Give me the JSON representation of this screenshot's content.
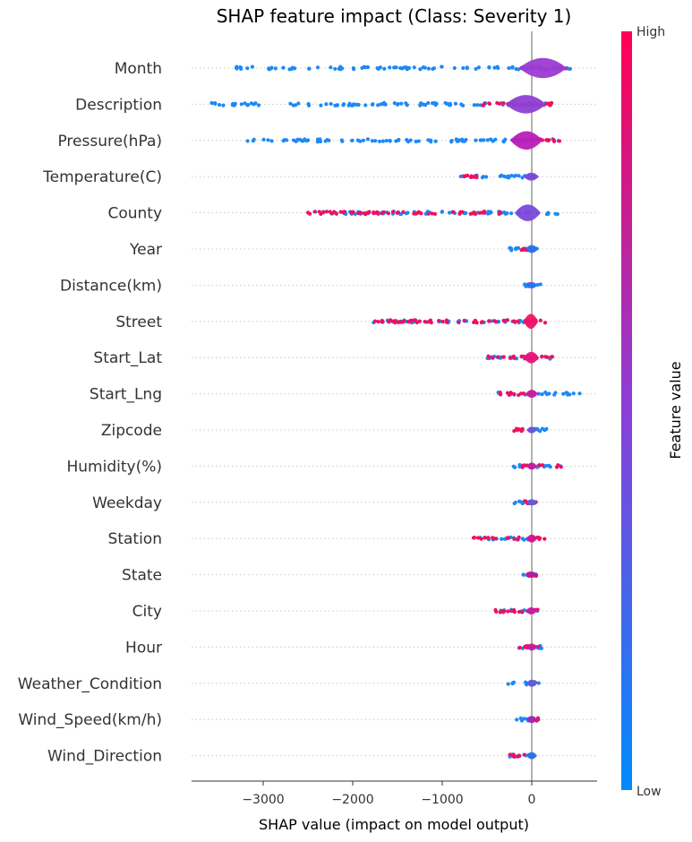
{
  "chart_data": {
    "type": "violin",
    "title": "SHAP feature impact (Class: Severity 1)",
    "xlabel": "SHAP value (impact on model output)",
    "xlim": [
      -3800,
      730
    ],
    "xticks": [
      -3000,
      -2000,
      -1000,
      0
    ],
    "xtick_labels": [
      "−3000",
      "−2000",
      "−1000",
      "0"
    ],
    "colorbar": {
      "label": "Feature value",
      "high_label": "High",
      "low_label": "Low",
      "high_color": "#ff0052",
      "low_color": "#008bfb"
    },
    "features": [
      {
        "name": "Month",
        "dot_range": [
          -3300,
          430
        ],
        "high_range": [
          -200,
          430
        ],
        "body": [
          -100,
          350
        ],
        "body_half": 1.0,
        "body_color": "#9b3bd4"
      },
      {
        "name": "Description",
        "dot_range": [
          -3600,
          250
        ],
        "high_range": [
          -600,
          250
        ],
        "body": [
          -250,
          120
        ],
        "body_half": 0.9,
        "body_color": "#8e3fd2"
      },
      {
        "name": "Pressure(hPa)",
        "dot_range": [
          -3300,
          330
        ],
        "high_range": [
          -200,
          330
        ],
        "body": [
          -200,
          80
        ],
        "body_half": 0.9,
        "body_color": "#b81fb8"
      },
      {
        "name": "Temperature(C)",
        "dot_range": [
          -820,
          150
        ],
        "high_range": [
          -820,
          -580
        ],
        "body": [
          -50,
          40
        ],
        "body_half": 0.3,
        "body_color": "#7a4ad8"
      },
      {
        "name": "County",
        "dot_range": [
          -2500,
          300
        ],
        "high_range": [
          -2500,
          -350
        ],
        "body": [
          -150,
          60
        ],
        "body_half": 0.8,
        "body_color": "#7a4ad8"
      },
      {
        "name": "Year",
        "dot_range": [
          -250,
          80
        ],
        "high_range": [
          -150,
          20
        ],
        "body": [
          -30,
          30
        ],
        "body_half": 0.3,
        "body_color": "#2875e8"
      },
      {
        "name": "Distance(km)",
        "dot_range": [
          -100,
          100
        ],
        "high_range": [
          -30,
          30
        ],
        "body": [
          -20,
          20
        ],
        "body_half": 0.2,
        "body_color": "#1e7cee"
      },
      {
        "name": "Street",
        "dot_range": [
          -1800,
          150
        ],
        "high_range": [
          -1800,
          150
        ],
        "body": [
          -50,
          30
        ],
        "body_half": 0.7,
        "body_color": "#f01266"
      },
      {
        "name": "Start_Lat",
        "dot_range": [
          -520,
          250
        ],
        "high_range": [
          -520,
          250
        ],
        "body": [
          -50,
          40
        ],
        "body_half": 0.5,
        "body_color": "#e8157a"
      },
      {
        "name": "Start_Lng",
        "dot_range": [
          -400,
          550
        ],
        "high_range": [
          -400,
          40
        ],
        "body": [
          -30,
          30
        ],
        "body_half": 0.3,
        "body_color": "#c81d9c"
      },
      {
        "name": "Zipcode",
        "dot_range": [
          -200,
          170
        ],
        "high_range": [
          -200,
          -100
        ],
        "body": [
          -20,
          20
        ],
        "body_half": 0.2,
        "body_color": "#6a55dc"
      },
      {
        "name": "Humidity(%)",
        "dot_range": [
          -280,
          330
        ],
        "high_range": [
          -150,
          330
        ],
        "body": [
          -20,
          20
        ],
        "body_half": 0.25,
        "body_color": "#c81d9c"
      },
      {
        "name": "Weekday",
        "dot_range": [
          -200,
          50
        ],
        "high_range": [
          -100,
          50
        ],
        "body": [
          -20,
          20
        ],
        "body_half": 0.2,
        "body_color": "#5a60de"
      },
      {
        "name": "Station",
        "dot_range": [
          -650,
          180
        ],
        "high_range": [
          -650,
          180
        ],
        "body": [
          -20,
          20
        ],
        "body_half": 0.3,
        "body_color": "#d41690"
      },
      {
        "name": "State",
        "dot_range": [
          -100,
          50
        ],
        "high_range": [
          -50,
          50
        ],
        "body": [
          -15,
          15
        ],
        "body_half": 0.2,
        "body_color": "#b01ea8"
      },
      {
        "name": "City",
        "dot_range": [
          -420,
          80
        ],
        "high_range": [
          -420,
          80
        ],
        "body": [
          -30,
          20
        ],
        "body_half": 0.25,
        "body_color": "#c81d9c"
      },
      {
        "name": "Hour",
        "dot_range": [
          -150,
          150
        ],
        "high_range": [
          -150,
          150
        ],
        "body": [
          -20,
          20
        ],
        "body_half": 0.25,
        "body_color": "#c81d9c"
      },
      {
        "name": "Weather_Condition",
        "dot_range": [
          -300,
          80
        ],
        "high_range": [
          -20,
          40
        ],
        "body": [
          -20,
          20
        ],
        "body_half": 0.25,
        "body_color": "#5a60de"
      },
      {
        "name": "Wind_Speed(km/h)",
        "dot_range": [
          -200,
          80
        ],
        "high_range": [
          -50,
          80
        ],
        "body": [
          -20,
          20
        ],
        "body_half": 0.25,
        "body_color": "#a12ab8"
      },
      {
        "name": "Wind_Direction",
        "dot_range": [
          -250,
          80
        ],
        "high_range": [
          -250,
          -80
        ],
        "body": [
          -20,
          20
        ],
        "body_half": 0.25,
        "body_color": "#2875e8"
      }
    ]
  }
}
